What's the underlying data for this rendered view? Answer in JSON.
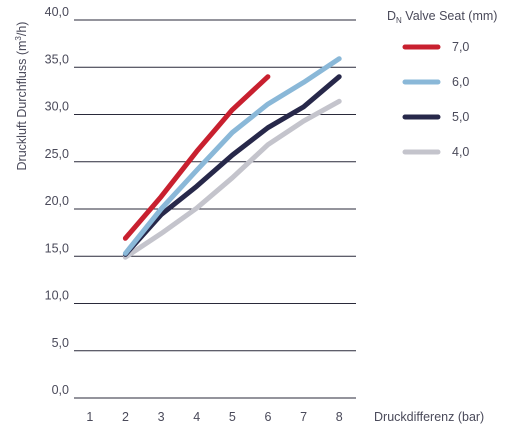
{
  "chart_data": {
    "type": "line",
    "ylabel_main": "Druckluft Durchfluss (m",
    "ylabel_sup": "3",
    "ylabel_end": "/h)",
    "xlabel": "Druckdifferenz (bar)",
    "legend_title_main": "D",
    "legend_title_sub": "N",
    "legend_title_rest": " Valve Seat (mm)",
    "legend_position": "right",
    "grid": "horizontal",
    "x_ticks": [
      "1",
      "2",
      "3",
      "4",
      "5",
      "6",
      "7",
      "8"
    ],
    "y_ticks": [
      "0,0",
      "5,0",
      "10,0",
      "15,0",
      "20,0",
      "25,0",
      "30,0",
      "35,0",
      "40,0"
    ],
    "xlim": [
      0.5,
      8.5
    ],
    "ylim": [
      0,
      40
    ],
    "series": [
      {
        "name": "7,0",
        "color": "#c8202f",
        "x": [
          2,
          3,
          4,
          5,
          6
        ],
        "y": [
          16.9,
          21.3,
          26.1,
          30.5,
          34.0
        ]
      },
      {
        "name": "6,0",
        "color": "#8ab8d8",
        "x": [
          2,
          3,
          4,
          5,
          6,
          7,
          8
        ],
        "y": [
          15.3,
          20.0,
          24.1,
          28.1,
          31.1,
          33.4,
          35.9
        ]
      },
      {
        "name": "5,0",
        "color": "#27284a",
        "x": [
          2,
          3,
          4,
          5,
          6,
          7,
          8
        ],
        "y": [
          15.2,
          19.4,
          22.4,
          25.7,
          28.6,
          30.8,
          34.0
        ]
      },
      {
        "name": "4,0",
        "color": "#c4c4cc",
        "x": [
          2,
          3,
          4,
          5,
          6,
          7,
          8
        ],
        "y": [
          14.9,
          17.4,
          20.1,
          23.3,
          26.8,
          29.3,
          31.4
        ]
      }
    ]
  }
}
